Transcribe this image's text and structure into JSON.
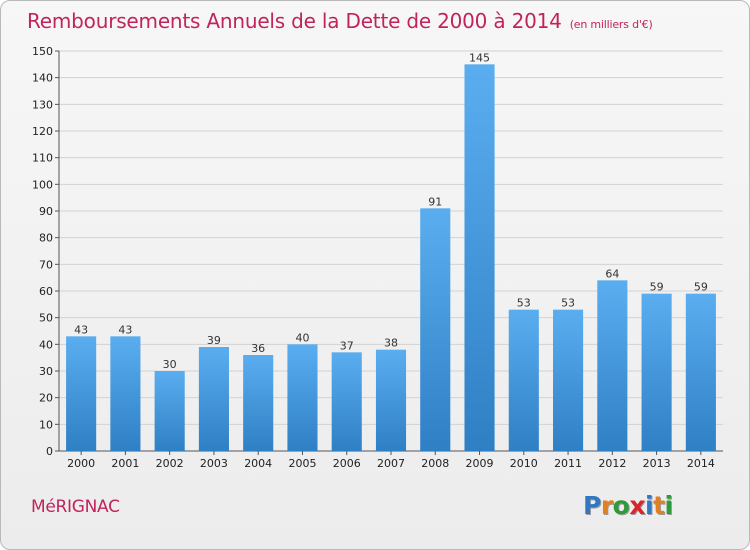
{
  "header": {
    "title": "Remboursements Annuels de la Dette de 2000 à 2014",
    "unit": "(en milliers d'€)"
  },
  "footer": {
    "city": "MéRIGNAC",
    "logo_letters": [
      {
        "ch": "P",
        "color": "#2f78c4"
      },
      {
        "ch": "r",
        "color": "#e2801f"
      },
      {
        "ch": "o",
        "color": "#2f9a3b"
      },
      {
        "ch": "x",
        "color": "#d7262c"
      },
      {
        "ch": "i",
        "color": "#2f78c4"
      },
      {
        "ch": "t",
        "color": "#e2801f"
      },
      {
        "ch": "i",
        "color": "#2f9a3b"
      }
    ]
  },
  "chart_data": {
    "type": "bar",
    "title": "Remboursements Annuels de la Dette de 2000 à 2014",
    "subtitle": "(en milliers d'€)",
    "categories": [
      "2000",
      "2001",
      "2002",
      "2003",
      "2004",
      "2005",
      "2006",
      "2007",
      "2008",
      "2009",
      "2010",
      "2011",
      "2012",
      "2013",
      "2014"
    ],
    "values": [
      43,
      43,
      30,
      39,
      36,
      40,
      37,
      38,
      91,
      145,
      53,
      53,
      64,
      59,
      59
    ],
    "ylim": [
      0,
      150
    ],
    "yticks": [
      0,
      10,
      20,
      30,
      40,
      50,
      60,
      70,
      80,
      90,
      100,
      110,
      120,
      130,
      140,
      150
    ],
    "grid": true,
    "bar_color_top": "#5aaef0",
    "bar_color_bottom": "#2f7fc4",
    "xlabel": "",
    "ylabel": ""
  }
}
